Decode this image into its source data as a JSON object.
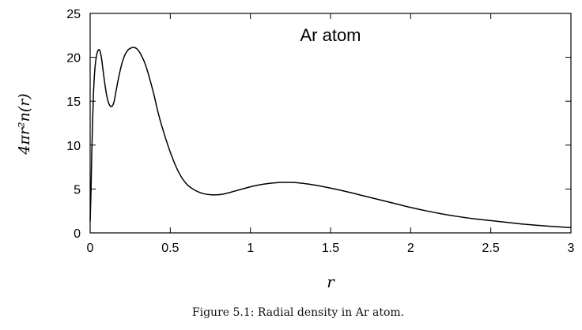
{
  "caption": "Figure 5.1: Radial density in Ar atom.",
  "chart_data": {
    "type": "line",
    "title": "",
    "annotation": "Ar atom",
    "xlabel": "r",
    "ylabel": "4πr²n(r)",
    "xlim": [
      0,
      3
    ],
    "ylim": [
      0,
      25
    ],
    "xticks": [
      0,
      0.5,
      1,
      1.5,
      2,
      2.5,
      3
    ],
    "xtick_labels": [
      "0",
      "0.5",
      "1",
      "1.5",
      "2",
      "2.5",
      "3"
    ],
    "yticks": [
      0,
      5,
      10,
      15,
      20,
      25
    ],
    "ytick_labels": [
      "0",
      "5",
      "10",
      "15",
      "20",
      "25"
    ],
    "grid": false,
    "line_color": "#000000",
    "series": [
      {
        "x": [
          0.0,
          0.005,
          0.01,
          0.02,
          0.03,
          0.04,
          0.05,
          0.06,
          0.07,
          0.08,
          0.09,
          0.1,
          0.11,
          0.12,
          0.13,
          0.14,
          0.15,
          0.16,
          0.18,
          0.2,
          0.22,
          0.24,
          0.26,
          0.28,
          0.3,
          0.32,
          0.34,
          0.36,
          0.38,
          0.4,
          0.42,
          0.45,
          0.5,
          0.55,
          0.6,
          0.65,
          0.7,
          0.75,
          0.8,
          0.85,
          0.9,
          0.95,
          1.0,
          1.05,
          1.1,
          1.15,
          1.2,
          1.25,
          1.3,
          1.4,
          1.5,
          1.6,
          1.7,
          1.8,
          1.9,
          2.0,
          2.1,
          2.2,
          2.3,
          2.4,
          2.5,
          2.6,
          2.7,
          2.8,
          2.9,
          3.0
        ],
        "y": [
          1.3,
          4.5,
          9.0,
          15.5,
          18.8,
          20.2,
          20.8,
          20.8,
          20.0,
          18.6,
          17.2,
          16.0,
          15.1,
          14.6,
          14.4,
          14.5,
          15.0,
          16.0,
          17.9,
          19.4,
          20.4,
          20.9,
          21.1,
          21.1,
          20.8,
          20.2,
          19.4,
          18.3,
          17.0,
          15.6,
          14.0,
          12.0,
          9.2,
          7.0,
          5.6,
          4.9,
          4.5,
          4.35,
          4.35,
          4.5,
          4.75,
          5.0,
          5.25,
          5.45,
          5.6,
          5.7,
          5.75,
          5.75,
          5.7,
          5.45,
          5.1,
          4.7,
          4.25,
          3.8,
          3.35,
          2.9,
          2.5,
          2.15,
          1.85,
          1.6,
          1.4,
          1.2,
          1.0,
          0.85,
          0.72,
          0.6
        ]
      }
    ]
  }
}
